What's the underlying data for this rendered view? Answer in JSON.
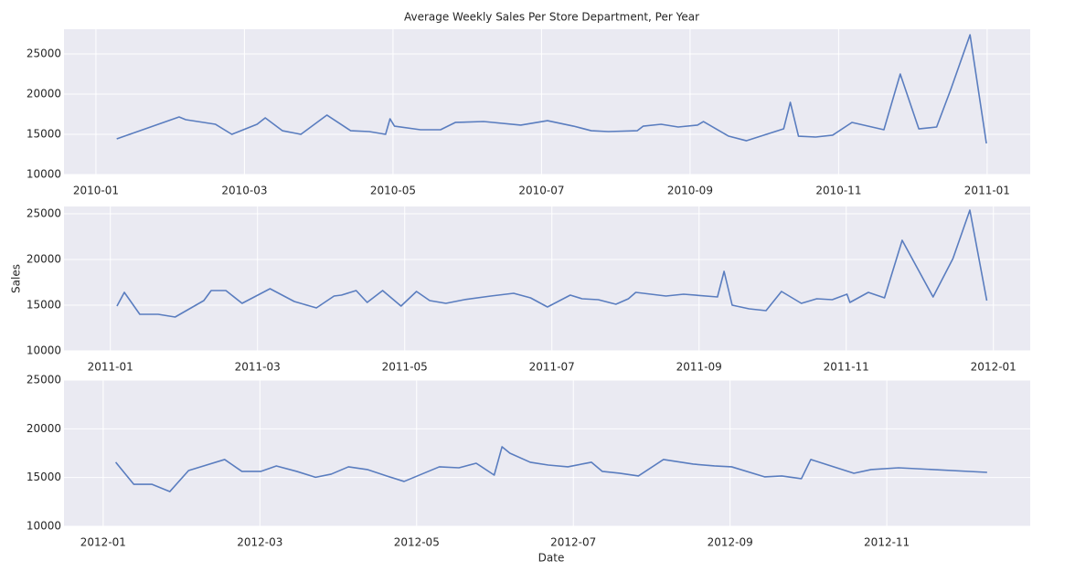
{
  "chart_data": [
    {
      "type": "line",
      "title": "Average Weekly Sales Per Store Department, Per Year",
      "color": "#5a7dbf",
      "grid": true,
      "xlim": [
        -0.43,
        12.58
      ],
      "ylim": [
        10000,
        28070
      ],
      "xticks": [
        {
          "value": 0,
          "label": "2010-01"
        },
        {
          "value": 2,
          "label": "2010-03"
        },
        {
          "value": 4,
          "label": "2010-05"
        },
        {
          "value": 6,
          "label": "2010-07"
        },
        {
          "value": 8,
          "label": "2010-09"
        },
        {
          "value": 10,
          "label": "2010-11"
        },
        {
          "value": 12,
          "label": "2011-01"
        }
      ],
      "yticks": [
        10000,
        15000,
        20000,
        25000
      ],
      "x": [
        0.28,
        1.12,
        1.21,
        1.61,
        1.83,
        2.17,
        2.28,
        2.51,
        2.76,
        3.11,
        3.43,
        3.68,
        3.9,
        3.96,
        4.02,
        4.37,
        4.64,
        4.84,
        5.22,
        5.72,
        6.08,
        6.43,
        6.67,
        6.9,
        7.29,
        7.37,
        7.61,
        7.84,
        8.1,
        8.18,
        8.52,
        8.76,
        9.26,
        9.35,
        9.46,
        9.69,
        9.92,
        10.18,
        10.61,
        10.83,
        11.08,
        11.32,
        11.51,
        11.77,
        11.99
      ],
      "values": [
        14430,
        17160,
        16820,
        16250,
        15000,
        16250,
        17050,
        15450,
        15000,
        17390,
        15450,
        15340,
        15000,
        16930,
        16020,
        15570,
        15570,
        16480,
        16590,
        16140,
        16700,
        16020,
        15450,
        15340,
        15450,
        16020,
        16250,
        15910,
        16140,
        16590,
        14770,
        14200,
        15680,
        18980,
        14770,
        14660,
        14890,
        16480,
        15570,
        22500,
        15680,
        15910,
        20570,
        27380,
        13860
      ]
    },
    {
      "type": "line",
      "ylabel": "Sales",
      "color": "#5a7dbf",
      "grid": true,
      "xlim": [
        -0.63,
        12.5
      ],
      "ylim": [
        10000,
        25800
      ],
      "xticks": [
        {
          "value": 0,
          "label": "2011-01"
        },
        {
          "value": 2,
          "label": "2011-03"
        },
        {
          "value": 4,
          "label": "2011-05"
        },
        {
          "value": 6,
          "label": "2011-07"
        },
        {
          "value": 8,
          "label": "2011-09"
        },
        {
          "value": 10,
          "label": "2011-11"
        },
        {
          "value": 12,
          "label": "2012-01"
        }
      ],
      "yticks": [
        10000,
        15000,
        20000,
        25000
      ],
      "x": [
        0.09,
        0.19,
        0.4,
        0.65,
        0.88,
        1.27,
        1.37,
        1.57,
        1.79,
        2.17,
        2.5,
        2.8,
        3.04,
        3.14,
        3.34,
        3.49,
        3.7,
        3.95,
        4.16,
        4.34,
        4.56,
        4.81,
        5.17,
        5.48,
        5.71,
        5.94,
        6.25,
        6.41,
        6.63,
        6.87,
        7.04,
        7.14,
        7.55,
        7.79,
        8.25,
        8.34,
        8.45,
        8.68,
        8.91,
        9.12,
        9.39,
        9.6,
        9.81,
        10.01,
        10.05,
        10.3,
        10.52,
        10.76,
        11.18,
        11.45,
        11.68,
        11.91
      ],
      "values": [
        14900,
        16400,
        14000,
        14000,
        13700,
        15500,
        16600,
        16600,
        15200,
        16800,
        15400,
        14700,
        16000,
        16100,
        16600,
        15300,
        16600,
        14900,
        16500,
        15500,
        15200,
        15600,
        16000,
        16300,
        15800,
        14800,
        16100,
        15700,
        15600,
        15100,
        15700,
        16400,
        16000,
        16200,
        15900,
        18700,
        15000,
        14600,
        14400,
        16500,
        15200,
        15700,
        15600,
        16200,
        15300,
        16400,
        15800,
        22100,
        15900,
        20100,
        25400,
        15500
      ]
    },
    {
      "type": "line",
      "xlabel": "Date",
      "color": "#5a7dbf",
      "grid": true,
      "xlim": [
        -0.5,
        11.83
      ],
      "ylim": [
        10000,
        25000
      ],
      "xticks": [
        {
          "value": 0,
          "label": "2012-01"
        },
        {
          "value": 2,
          "label": "2012-03"
        },
        {
          "value": 4,
          "label": "2012-05"
        },
        {
          "value": 6,
          "label": "2012-07"
        },
        {
          "value": 8,
          "label": "2012-09"
        },
        {
          "value": 10,
          "label": "2012-11"
        }
      ],
      "yticks": [
        10000,
        15000,
        20000,
        25000
      ],
      "x": [
        0.16,
        0.39,
        0.62,
        0.85,
        1.09,
        1.55,
        1.77,
        2.01,
        2.21,
        2.47,
        2.71,
        2.91,
        3.13,
        3.37,
        3.62,
        3.84,
        4.29,
        4.54,
        4.76,
        4.99,
        5.09,
        5.19,
        5.45,
        5.68,
        5.93,
        6.23,
        6.37,
        6.59,
        6.83,
        7.15,
        7.53,
        7.8,
        8.02,
        8.44,
        8.66,
        8.91,
        9.03,
        9.58,
        9.8,
        10.15,
        11.28
      ],
      "values": [
        16570,
        14310,
        14310,
        13560,
        15720,
        16850,
        15630,
        15630,
        16190,
        15630,
        15030,
        15350,
        16100,
        15820,
        15160,
        14600,
        16100,
        16000,
        16470,
        15250,
        18160,
        17500,
        16570,
        16280,
        16100,
        16570,
        15630,
        15440,
        15160,
        16850,
        16380,
        16190,
        16100,
        15070,
        15160,
        14880,
        16850,
        15440,
        15820,
        16000,
        15530
      ]
    }
  ]
}
